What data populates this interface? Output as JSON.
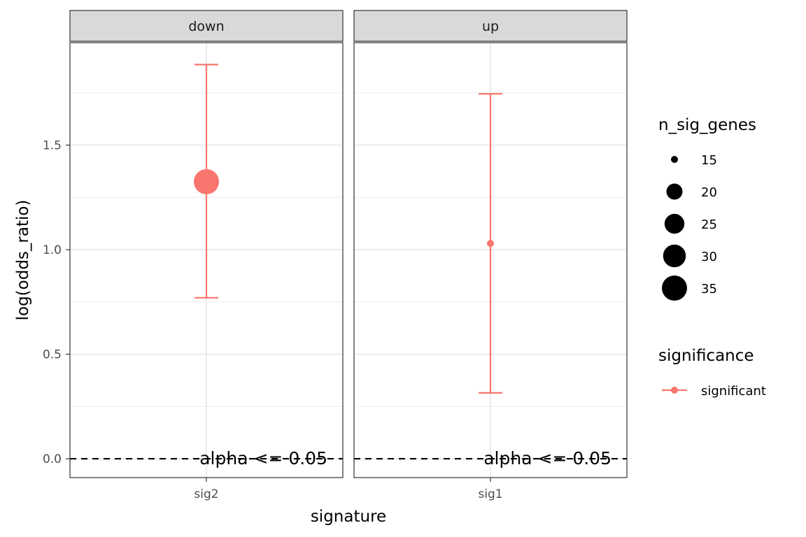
{
  "chart_data": {
    "type": "scatter",
    "xlabel": "signature",
    "ylabel": "log(odds_ratio)",
    "ylim": [
      -0.09,
      1.99
    ],
    "yticks": [
      0.0,
      0.5,
      1.0,
      1.5
    ],
    "ytick_labels": [
      "0.0",
      "0.5",
      "1.0",
      "1.5"
    ],
    "reference_line": {
      "y": 0.0,
      "style": "dashed",
      "label": "alpha <= 0.05"
    },
    "facets": [
      {
        "strip_label": "down",
        "category": "sig2",
        "point": {
          "y": 1.325,
          "n_sig_genes": 35,
          "significance": "significant"
        },
        "error_bar": {
          "low": 0.77,
          "high": 1.885
        }
      },
      {
        "strip_label": "up",
        "category": "sig1",
        "point": {
          "y": 1.03,
          "n_sig_genes": 15,
          "significance": "significant"
        },
        "error_bar": {
          "low": 0.315,
          "high": 1.745
        }
      }
    ],
    "legend_size": {
      "title": "n_sig_genes",
      "levels": [
        15,
        20,
        25,
        30,
        35
      ],
      "labels": [
        "15",
        "20",
        "25",
        "30",
        "35"
      ]
    },
    "legend_color": {
      "title": "significance",
      "entries": [
        {
          "label": "significant",
          "color": "#F8766D"
        }
      ]
    },
    "colors": {
      "significant": "#F8766D",
      "strip_fill": "#D9D9D9",
      "panel_border": "#333333",
      "grid": "#EBEBEB"
    }
  }
}
